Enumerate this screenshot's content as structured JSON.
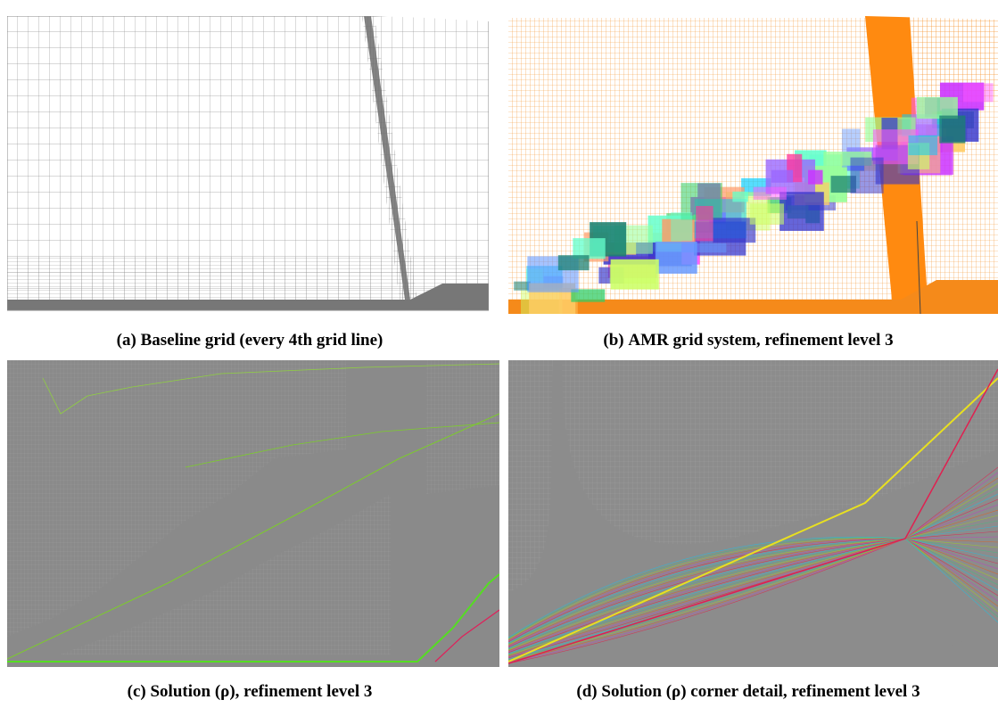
{
  "panels": [
    {
      "label": "(a)",
      "caption": "Baseline grid (every 4th grid line)"
    },
    {
      "label": "(b)",
      "caption": "AMR grid system, refinement level 3"
    },
    {
      "label": "(c)",
      "caption": "Solution (ρ), refinement level 3"
    },
    {
      "label": "(d)",
      "caption": "Solution (ρ) corner detail, refinement level 3"
    }
  ]
}
